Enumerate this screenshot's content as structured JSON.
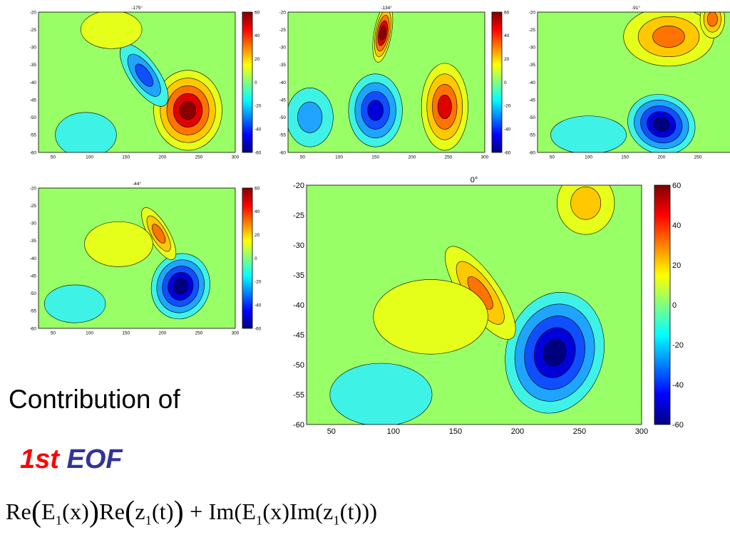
{
  "panels": [
    {
      "id": "p1",
      "title": "-175°"
    },
    {
      "id": "p2",
      "title": "-134°"
    },
    {
      "id": "p3",
      "title": "-91°"
    },
    {
      "id": "p4",
      "title": "-44°"
    },
    {
      "id": "p5",
      "title": "0°"
    }
  ],
  "axes": {
    "xticks": [
      "50",
      "100",
      "150",
      "200",
      "250",
      "300"
    ],
    "yticks": [
      "-20",
      "-25",
      "-30",
      "-35",
      "-40",
      "-45",
      "-50",
      "-55",
      "-60"
    ],
    "colorbar_ticks": [
      "60",
      "40",
      "20",
      "0",
      "-20",
      "-40",
      "-60"
    ]
  },
  "text": {
    "caption": "Contribution of",
    "first": "1st",
    "eof": "EOF"
  },
  "formula": {
    "re1": "Re",
    "e1": "E",
    "sub1": "1",
    "x": "(x)",
    "re2": "Re",
    "z": "z",
    "t": "(t)",
    "plus": " + ",
    "im1": "Im(E",
    "im2": "Im(z",
    "close": "))"
  },
  "colors": {
    "title_first": "#ff0000",
    "title_eof": "#333399",
    "background_field": "#99ff66"
  }
}
